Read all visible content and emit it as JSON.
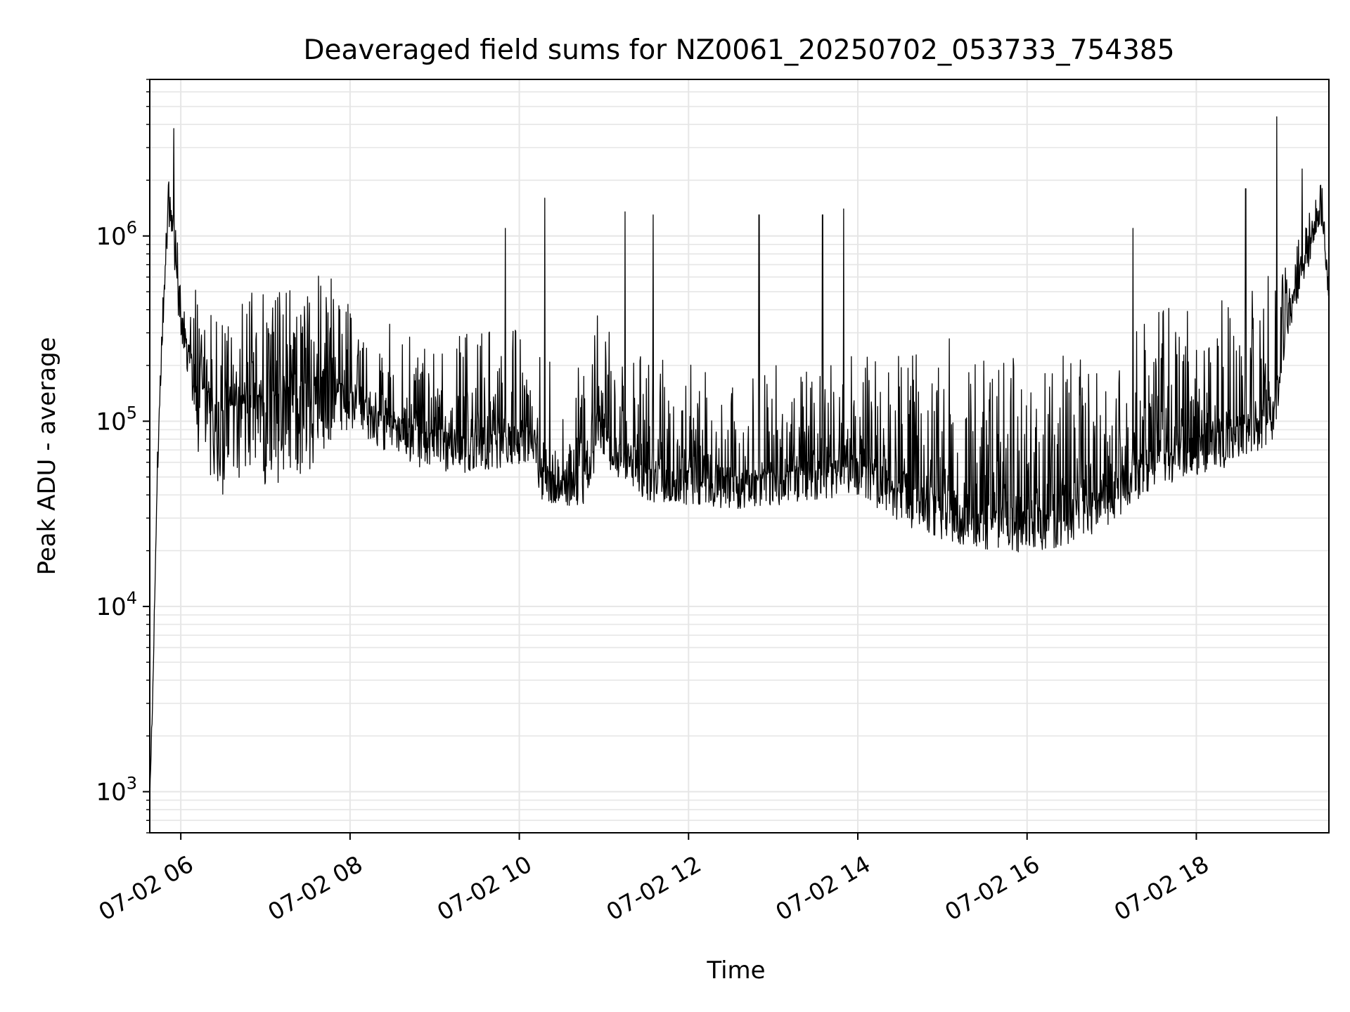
{
  "chart_data": {
    "type": "line",
    "title": "Deaveraged field sums for NZ0061_20250702_053733_754385",
    "xlabel": "Time",
    "ylabel": "Peak ADU - average",
    "x_scale": "time",
    "y_scale": "log",
    "xlim": [
      "07-02 05:38",
      "07-02 19:34"
    ],
    "ylim": [
      600,
      7000000
    ],
    "grid": true,
    "legend": "none",
    "x_ticks": [
      {
        "label": "07-02 06",
        "value": "07-02 06:00"
      },
      {
        "label": "07-02 08",
        "value": "07-02 08:00"
      },
      {
        "label": "07-02 10",
        "value": "07-02 10:00"
      },
      {
        "label": "07-02 12",
        "value": "07-02 12:00"
      },
      {
        "label": "07-02 14",
        "value": "07-02 14:00"
      },
      {
        "label": "07-02 16",
        "value": "07-02 16:00"
      },
      {
        "label": "07-02 18",
        "value": "07-02 18:00"
      }
    ],
    "y_ticks": [
      {
        "base": "10",
        "exp": "3",
        "value": 1000
      },
      {
        "base": "10",
        "exp": "4",
        "value": 10000
      },
      {
        "base": "10",
        "exp": "5",
        "value": 100000
      },
      {
        "base": "10",
        "exp": "6",
        "value": 1000000
      }
    ],
    "colors": {
      "line": "#000000",
      "grid": "#e6e6e6",
      "axes": "#000000"
    },
    "series": [
      {
        "trend": [
          {
            "x": "07-02 05:38",
            "y": 900
          },
          {
            "x": "07-02 05:40",
            "y": 3000
          },
          {
            "x": "07-02 05:43",
            "y": 40000
          },
          {
            "x": "07-02 05:46",
            "y": 200000
          },
          {
            "x": "07-02 05:49",
            "y": 700000
          },
          {
            "x": "07-02 05:51",
            "y": 1300000
          },
          {
            "x": "07-02 05:53",
            "y": 1400000
          },
          {
            "x": "07-02 05:56",
            "y": 800000
          },
          {
            "x": "07-02 06:00",
            "y": 350000
          },
          {
            "x": "07-02 06:15",
            "y": 150000
          },
          {
            "x": "07-02 06:30",
            "y": 120000
          },
          {
            "x": "07-02 07:00",
            "y": 130000
          },
          {
            "x": "07-02 07:30",
            "y": 160000
          },
          {
            "x": "07-02 07:45",
            "y": 180000
          },
          {
            "x": "07-02 08:15",
            "y": 120000
          },
          {
            "x": "07-02 08:45",
            "y": 90000
          },
          {
            "x": "07-02 09:15",
            "y": 80000
          },
          {
            "x": "07-02 09:45",
            "y": 85000
          },
          {
            "x": "07-02 10:10",
            "y": 90000
          },
          {
            "x": "07-02 10:15",
            "y": 55000
          },
          {
            "x": "07-02 10:50",
            "y": 50000
          },
          {
            "x": "07-02 10:55",
            "y": 110000
          },
          {
            "x": "07-02 11:05",
            "y": 80000
          },
          {
            "x": "07-02 11:30",
            "y": 55000
          },
          {
            "x": "07-02 12:30",
            "y": 50000
          },
          {
            "x": "07-02 13:30",
            "y": 55000
          },
          {
            "x": "07-02 14:00",
            "y": 60000
          },
          {
            "x": "07-02 14:30",
            "y": 45000
          },
          {
            "x": "07-02 15:00",
            "y": 38000
          },
          {
            "x": "07-02 15:40",
            "y": 32000
          },
          {
            "x": "07-02 16:20",
            "y": 33000
          },
          {
            "x": "07-02 16:50",
            "y": 40000
          },
          {
            "x": "07-02 17:30",
            "y": 70000
          },
          {
            "x": "07-02 18:00",
            "y": 80000
          },
          {
            "x": "07-02 18:40",
            "y": 100000
          },
          {
            "x": "07-02 18:55",
            "y": 130000
          },
          {
            "x": "07-02 19:05",
            "y": 400000
          },
          {
            "x": "07-02 19:20",
            "y": 900000
          },
          {
            "x": "07-02 19:28",
            "y": 1500000
          },
          {
            "x": "07-02 19:34",
            "y": 500000
          }
        ],
        "variability_factor_low": [
          {
            "x": "07-02 05:38",
            "f": 1.0
          },
          {
            "x": "07-02 06:05",
            "f": 1.5
          },
          {
            "x": "07-02 06:15",
            "f": 3.0
          },
          {
            "x": "07-02 07:30",
            "f": 3.0
          },
          {
            "x": "07-02 08:00",
            "f": 1.6
          },
          {
            "x": "07-02 10:10",
            "f": 1.5
          },
          {
            "x": "07-02 11:00",
            "f": 1.5
          },
          {
            "x": "07-02 14:00",
            "f": 1.5
          },
          {
            "x": "07-02 15:00",
            "f": 1.7
          },
          {
            "x": "07-02 17:00",
            "f": 1.6
          },
          {
            "x": "07-02 18:55",
            "f": 1.6
          },
          {
            "x": "07-02 19:05",
            "f": 1.4
          },
          {
            "x": "07-02 19:34",
            "f": 1.2
          }
        ],
        "variability_factor_high": [
          {
            "x": "07-02 05:38",
            "f": 1.2
          },
          {
            "x": "07-02 06:05",
            "f": 2.0
          },
          {
            "x": "07-02 06:15",
            "f": 4.0
          },
          {
            "x": "07-02 07:30",
            "f": 4.0
          },
          {
            "x": "07-02 08:00",
            "f": 3.0
          },
          {
            "x": "07-02 10:10",
            "f": 4.0
          },
          {
            "x": "07-02 11:00",
            "f": 4.0
          },
          {
            "x": "07-02 14:00",
            "f": 4.0
          },
          {
            "x": "07-02 15:00",
            "f": 8.0
          },
          {
            "x": "07-02 17:00",
            "f": 6.0
          },
          {
            "x": "07-02 18:55",
            "f": 5.0
          },
          {
            "x": "07-02 19:05",
            "f": 2.0
          },
          {
            "x": "07-02 19:34",
            "f": 1.4
          }
        ],
        "peaks": [
          {
            "x": "07-02 05:55",
            "y": 3800000
          },
          {
            "x": "07-02 09:50",
            "y": 1100000
          },
          {
            "x": "07-02 10:18",
            "y": 1600000
          },
          {
            "x": "07-02 11:15",
            "y": 1350000
          },
          {
            "x": "07-02 11:35",
            "y": 1300000
          },
          {
            "x": "07-02 12:50",
            "y": 1300000
          },
          {
            "x": "07-02 13:35",
            "y": 1300000
          },
          {
            "x": "07-02 13:50",
            "y": 1400000
          },
          {
            "x": "07-02 17:15",
            "y": 1100000
          },
          {
            "x": "07-02 18:35",
            "y": 1800000
          },
          {
            "x": "07-02 18:57",
            "y": 4400000
          },
          {
            "x": "07-02 19:15",
            "y": 2300000
          }
        ],
        "range": [
          17000,
          4400000
        ]
      }
    ]
  }
}
